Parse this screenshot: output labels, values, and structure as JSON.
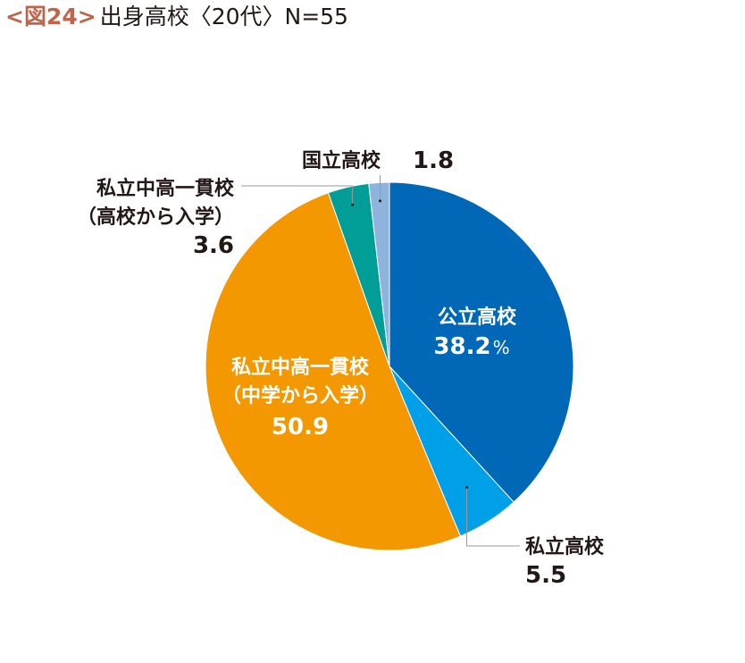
{
  "title": {
    "figure_label": "<図24>",
    "text": "出身高校〈20代〉N=55"
  },
  "chart_data": {
    "type": "pie",
    "title": "出身高校〈20代〉N=55",
    "unit": "%",
    "slices": [
      {
        "label": "公立高校",
        "value": 38.2,
        "value_text": "38.2",
        "color": "#0068b7"
      },
      {
        "label": "私立高校",
        "value": 5.5,
        "value_text": "5.5",
        "color": "#00a0e9"
      },
      {
        "label": "私立中高一貫校（中学から入学）",
        "label_lines": [
          "私立中高一貫校",
          "（中学から入学）"
        ],
        "value": 50.9,
        "value_text": "50.9",
        "color": "#f39800"
      },
      {
        "label": "私立中高一貫校（高校から入学）",
        "label_lines": [
          "私立中高一貫校",
          "（高校から入学）"
        ],
        "value": 3.6,
        "value_text": "3.6",
        "color": "#009e96"
      },
      {
        "label": "国立高校",
        "value": 1.8,
        "value_text": "1.8",
        "color": "#8eb3dd"
      }
    ]
  }
}
